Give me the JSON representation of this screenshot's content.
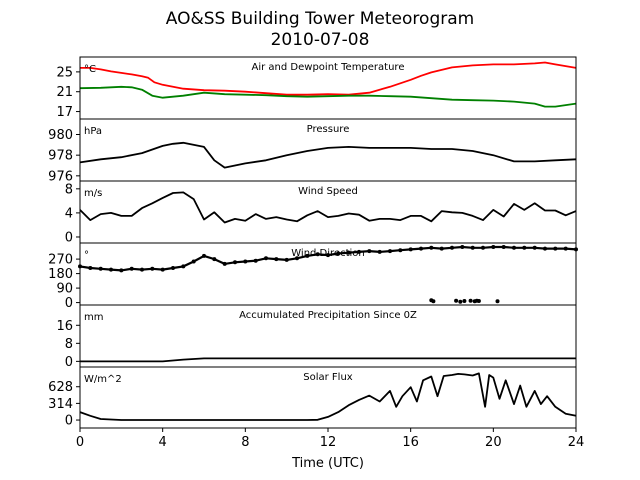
{
  "figure": {
    "title_line1": "AO&SS Building Tower Meteorogram",
    "title_line2": "2010-07-08",
    "xlabel": "Time (UTC)"
  },
  "chart_data": [
    {
      "type": "line",
      "title": "Air and Dewpoint Temperature",
      "unit": "°C",
      "yticks": [
        17,
        21,
        25
      ],
      "ylim": [
        15.5,
        28
      ],
      "grid": false,
      "series": [
        {
          "color": "#ff0000",
          "x": [
            0,
            0.5,
            1,
            1.5,
            2,
            2.5,
            3,
            3.3,
            3.6,
            4,
            5,
            6,
            7,
            8,
            9,
            10,
            11,
            12,
            13,
            14,
            15,
            16,
            16.5,
            17,
            18,
            19,
            20,
            21,
            22,
            22.5,
            23,
            24
          ],
          "y": [
            25.8,
            25.8,
            25.5,
            25.1,
            24.8,
            24.5,
            24.1,
            23.8,
            22.9,
            22.4,
            21.6,
            21.3,
            21.2,
            21.0,
            20.7,
            20.4,
            20.4,
            20.5,
            20.4,
            20.8,
            22.0,
            23.4,
            24.2,
            24.9,
            25.9,
            26.3,
            26.5,
            26.5,
            26.7,
            26.9,
            26.5,
            25.8
          ]
        },
        {
          "color": "#008000",
          "x": [
            0,
            1,
            2,
            2.5,
            3,
            3.5,
            4,
            5,
            6,
            7,
            8,
            9,
            10,
            11,
            12,
            13,
            14,
            15,
            16,
            17,
            18,
            19,
            20,
            21,
            22,
            22.5,
            23,
            24
          ],
          "y": [
            21.7,
            21.8,
            22.0,
            21.9,
            21.4,
            20.2,
            19.8,
            20.2,
            20.8,
            20.5,
            20.4,
            20.3,
            20.1,
            20.0,
            20.1,
            20.2,
            20.2,
            20.1,
            20.0,
            19.7,
            19.4,
            19.3,
            19.2,
            19.0,
            18.6,
            18.0,
            18.0,
            18.6
          ]
        }
      ]
    },
    {
      "type": "line",
      "title": "Pressure",
      "unit": "hPa",
      "yticks": [
        976,
        978,
        980
      ],
      "ylim": [
        975.5,
        981.5
      ],
      "grid": false,
      "series": [
        {
          "color": "#000000",
          "x": [
            0,
            1,
            2,
            3,
            4,
            4.5,
            5,
            6,
            6.5,
            7,
            7.5,
            8,
            9,
            10,
            11,
            12,
            13,
            14,
            15,
            16,
            17,
            18,
            19,
            20,
            21,
            22,
            23,
            24
          ],
          "y": [
            977.3,
            977.6,
            977.8,
            978.2,
            978.9,
            979.1,
            979.2,
            978.8,
            977.5,
            976.8,
            977.0,
            977.2,
            977.5,
            978.0,
            978.4,
            978.7,
            978.8,
            978.7,
            978.7,
            978.7,
            978.6,
            978.6,
            978.4,
            978.0,
            977.4,
            977.4,
            977.5,
            977.6
          ]
        }
      ]
    },
    {
      "type": "line",
      "title": "Wind Speed",
      "unit": "m/s",
      "yticks": [
        0,
        4,
        8
      ],
      "ylim": [
        -1,
        9.3
      ],
      "grid": false,
      "series": [
        {
          "color": "#000000",
          "x": [
            0,
            0.5,
            1,
            1.5,
            2,
            2.5,
            3,
            3.5,
            4,
            4.5,
            5,
            5.5,
            6,
            6.5,
            7,
            7.5,
            8,
            8.5,
            9,
            9.5,
            10,
            10.5,
            11,
            11.5,
            12,
            12.5,
            13,
            13.5,
            14,
            14.5,
            15,
            15.5,
            16,
            16.5,
            17,
            17.5,
            18,
            18.5,
            19,
            19.5,
            20,
            20.5,
            21,
            21.5,
            22,
            22.5,
            23,
            23.5,
            24
          ],
          "y": [
            4.5,
            2.8,
            3.8,
            4.0,
            3.5,
            3.5,
            4.8,
            5.6,
            6.5,
            7.3,
            7.4,
            6.3,
            2.9,
            4.1,
            2.4,
            3.0,
            2.7,
            3.8,
            3.0,
            3.3,
            2.9,
            2.6,
            3.6,
            4.3,
            3.3,
            3.5,
            3.9,
            3.7,
            2.7,
            3.0,
            3.0,
            2.8,
            3.5,
            3.5,
            2.6,
            4.3,
            4.1,
            4.0,
            3.5,
            2.8,
            4.5,
            3.4,
            5.5,
            4.5,
            5.6,
            4.4,
            4.4,
            3.6,
            4.3
          ]
        }
      ]
    },
    {
      "type": "scatter",
      "title": "Wind Direction",
      "unit": "°",
      "yticks": [
        0,
        90,
        180,
        270
      ],
      "ylim": [
        -15,
        370
      ],
      "grid": false,
      "series": [
        {
          "color": "#000000",
          "x": [
            0,
            0.5,
            1,
            1.5,
            2,
            2.5,
            3,
            3.5,
            4,
            4.5,
            5,
            5.5,
            6,
            6.5,
            7,
            7.5,
            8,
            8.5,
            9,
            9.5,
            10,
            10.5,
            11,
            11.5,
            12,
            12.5,
            13,
            13.5,
            14,
            14.5,
            15,
            15.5,
            16,
            16.5,
            17,
            17.5,
            18,
            18.5,
            19,
            19.5,
            20,
            20.5,
            21,
            21.5,
            22,
            22.5,
            23,
            23.5,
            24
          ],
          "y": [
            225,
            215,
            210,
            205,
            200,
            210,
            205,
            210,
            205,
            215,
            225,
            255,
            290,
            270,
            240,
            250,
            255,
            260,
            275,
            270,
            265,
            275,
            290,
            300,
            295,
            305,
            310,
            315,
            320,
            315,
            320,
            325,
            330,
            335,
            340,
            335,
            340,
            345,
            340,
            340,
            345,
            345,
            340,
            340,
            340,
            335,
            335,
            335,
            330
          ]
        },
        {
          "color": "#000000",
          "x": [
            17.0,
            17.1,
            18.2,
            18.4,
            18.6,
            18.9,
            19.1,
            19.2,
            19.3,
            20.2
          ],
          "y": [
            15,
            8,
            12,
            5,
            10,
            12,
            8,
            12,
            10,
            8
          ]
        }
      ]
    },
    {
      "type": "line",
      "title": "Accumulated Precipitation Since 0Z",
      "unit": "mm",
      "yticks": [
        0,
        8,
        16
      ],
      "ylim": [
        -2.5,
        25
      ],
      "grid": false,
      "series": [
        {
          "color": "#000000",
          "x": [
            0,
            4,
            5,
            6,
            24
          ],
          "y": [
            0,
            0,
            0.8,
            1.3,
            1.3
          ]
        }
      ]
    },
    {
      "type": "line",
      "title": "Solar Flux",
      "unit": "W/m^2",
      "yticks": [
        0,
        314,
        628
      ],
      "ylim": [
        -150,
        1000
      ],
      "grid": false,
      "series": [
        {
          "color": "#000000",
          "x": [
            0,
            0.5,
            1,
            2,
            3,
            4,
            5,
            6,
            7,
            8,
            9,
            10,
            11,
            11.5,
            12,
            12.5,
            13,
            13.5,
            14,
            14.5,
            15,
            15.3,
            15.6,
            16,
            16.3,
            16.6,
            17,
            17.3,
            17.6,
            18,
            18.3,
            18.6,
            19,
            19.3,
            19.6,
            19.8,
            20,
            20.3,
            20.6,
            21,
            21.3,
            21.6,
            22,
            22.3,
            22.6,
            23,
            23.5,
            24
          ],
          "y": [
            150,
            80,
            20,
            0,
            0,
            0,
            0,
            0,
            0,
            0,
            0,
            0,
            0,
            5,
            60,
            150,
            280,
            380,
            460,
            350,
            550,
            250,
            450,
            620,
            350,
            750,
            820,
            450,
            830,
            850,
            870,
            860,
            840,
            880,
            250,
            850,
            800,
            400,
            750,
            300,
            650,
            250,
            550,
            300,
            450,
            250,
            120,
            80
          ]
        }
      ]
    }
  ],
  "x_axis": {
    "range": [
      0,
      24
    ],
    "ticks": [
      0,
      4,
      8,
      12,
      16,
      20,
      24
    ]
  }
}
